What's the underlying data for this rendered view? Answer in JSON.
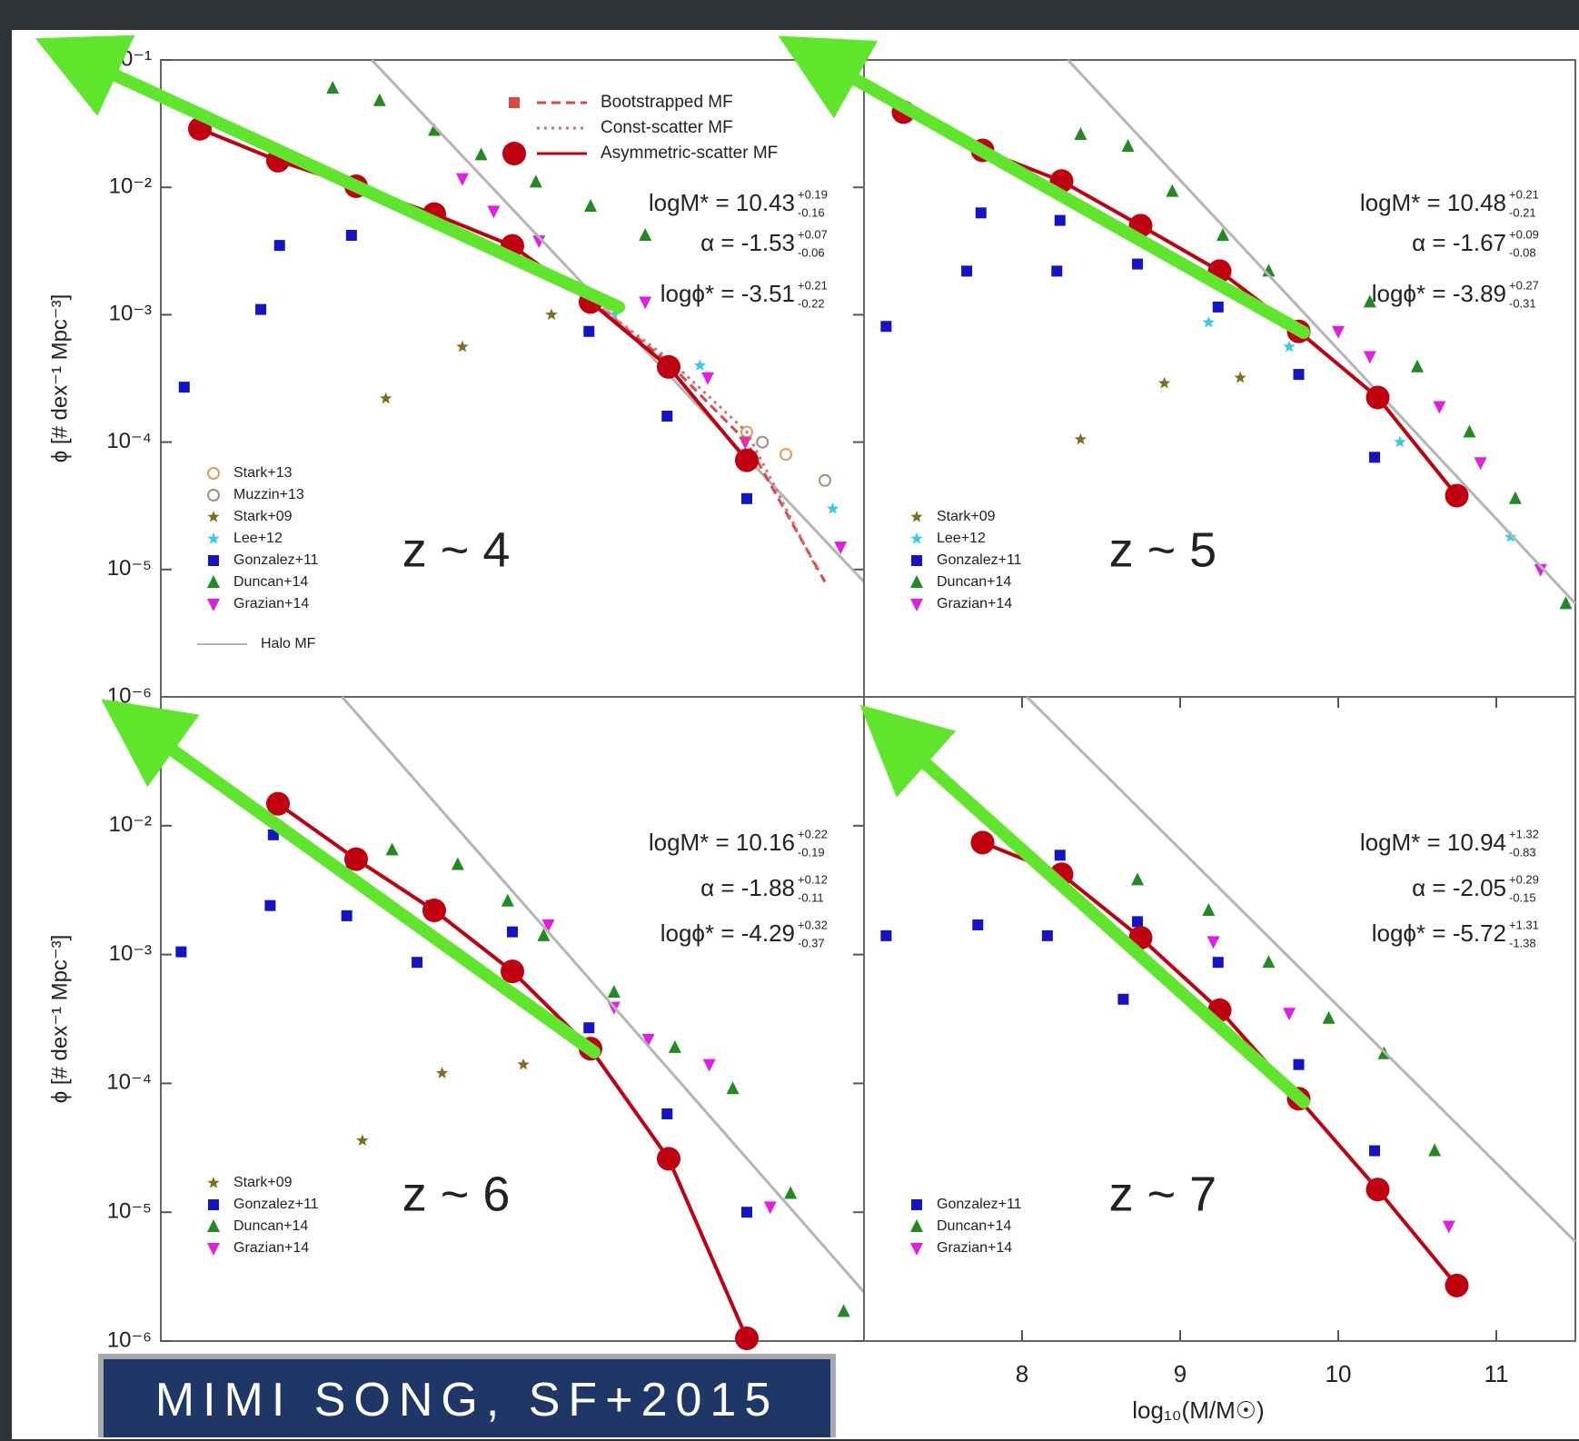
{
  "chart_data": [
    {
      "type": "scatter",
      "label": "z ~ 4",
      "ylabel": "ϕ [# dex⁻¹ Mpc⁻³]",
      "yscale": "log",
      "xlim": [
        7,
        11.5
      ],
      "ylim": [
        1e-06,
        0.1
      ],
      "yticks": [
        {
          "value": 0.1,
          "label": "10⁻¹"
        },
        {
          "value": 0.01,
          "label": "10⁻²"
        },
        {
          "value": 0.001,
          "label": "10⁻³"
        },
        {
          "value": 0.0001,
          "label": "10⁻⁴"
        },
        {
          "value": 1e-05,
          "label": "10⁻⁵"
        },
        {
          "value": 1e-06,
          "label": "10⁻⁶"
        }
      ],
      "annotations": [
        {
          "text": "logM* = 10.43",
          "sup": "+0.19",
          "sub": "-0.16"
        },
        {
          "text": "α = -1.53",
          "sup": "+0.07",
          "sub": "-0.06"
        },
        {
          "text": "logϕ* = -3.51",
          "sup": "+0.21",
          "sub": "-0.22"
        }
      ],
      "legend": "lower left",
      "mf_legend": "upper right",
      "series": [
        {
          "name": "Stark+13",
          "color": "#e39a5a",
          "marker": "open-circle",
          "x": [
            10.25,
            10.75,
            11.0
          ],
          "values": [
            0.0004,
            0.00012,
            8e-05
          ]
        },
        {
          "name": "Muzzin+13",
          "color": "#a88c7c",
          "marker": "open-circle",
          "x": [
            10.85,
            11.25
          ],
          "values": [
            0.0001,
            5e-05
          ]
        },
        {
          "name": "Stark+09",
          "color": "#7d6e22",
          "marker": "star",
          "x": [
            8.44,
            8.93,
            9.5
          ],
          "values": [
            0.00022,
            0.00056,
            0.001
          ]
        },
        {
          "name": "Lee+12",
          "color": "#33cfe0",
          "marker": "star",
          "x": [
            9.9,
            10.45,
            11.3
          ],
          "values": [
            0.001,
            0.0004,
            3e-05
          ]
        },
        {
          "name": "Gonzalez+11",
          "color": "#1414c4",
          "marker": "square",
          "x": [
            7.15,
            7.64,
            7.76,
            8.22,
            9.74,
            10.24,
            10.75
          ],
          "values": [
            0.00027,
            0.0011,
            0.0035,
            0.0042,
            0.00074,
            0.00016,
            3.6e-05
          ]
        },
        {
          "name": "Duncan+14",
          "color": "#238a23",
          "marker": "triangle",
          "x": [
            8.1,
            8.4,
            8.75,
            9.05,
            9.4,
            9.75,
            10.1
          ],
          "values": [
            0.06,
            0.048,
            0.028,
            0.018,
            0.011,
            0.0071,
            0.0042
          ]
        },
        {
          "name": "Grazian+14",
          "color": "#e020e0",
          "marker": "down-triangle",
          "x": [
            8.93,
            9.13,
            9.42,
            10.1,
            10.5,
            10.74,
            11.35
          ],
          "values": [
            0.0117,
            0.0065,
            0.0038,
            0.00126,
            0.00032,
            0.0001,
            1.5e-05
          ]
        },
        {
          "name": "Halo MF",
          "color": "#b4b4b4",
          "linestyle": "solid",
          "x": [
            8.35,
            11.5
          ],
          "values": [
            0.1,
            8e-06
          ]
        }
      ],
      "mf_series": [
        {
          "name": "Bootstrapped MF",
          "color": "#d84848",
          "marker": "square",
          "linestyle": "dashed",
          "x": [
            9.75,
            10.25,
            10.75,
            11.25
          ],
          "values": [
            0.0013,
            0.00042,
            0.0001,
            8e-06
          ]
        },
        {
          "name": "Const-scatter MF",
          "color": "#e06a6a",
          "linestyle": "dotted",
          "x": [
            9.75,
            10.25,
            10.75,
            11.2
          ],
          "values": [
            0.0013,
            0.00045,
            0.00012,
            1e-05
          ]
        },
        {
          "name": "Asymmetric-scatter MF",
          "color": "#c00010",
          "marker": "big-circle",
          "linestyle": "solid",
          "x": [
            7.25,
            7.75,
            8.25,
            8.75,
            9.25,
            9.75,
            10.25,
            10.75
          ],
          "values": [
            0.0288,
            0.0162,
            0.0102,
            0.00617,
            0.00347,
            0.00126,
            0.000389,
            7.2e-05
          ]
        }
      ]
    },
    {
      "type": "scatter",
      "label": "z ~ 5",
      "yscale": "log",
      "xlim": [
        7,
        11.5
      ],
      "ylim": [
        1e-06,
        0.1
      ],
      "annotations": [
        {
          "text": "logM* = 10.48",
          "sup": "+0.21",
          "sub": "-0.21"
        },
        {
          "text": "α = -1.67",
          "sup": "+0.09",
          "sub": "-0.08"
        },
        {
          "text": "logϕ* = -3.89",
          "sup": "+0.27",
          "sub": "-0.31"
        }
      ],
      "legend": "lower left",
      "series": [
        {
          "name": "Stark+09",
          "color": "#7d6e22",
          "marker": "star",
          "x": [
            8.37,
            8.9,
            9.38
          ],
          "values": [
            0.000105,
            0.00029,
            0.00032
          ]
        },
        {
          "name": "Lee+12",
          "color": "#33cfe0",
          "marker": "star",
          "x": [
            9.18,
            9.69,
            10.39,
            11.09
          ],
          "values": [
            0.00087,
            0.00056,
            0.0001,
            1.8e-05
          ]
        },
        {
          "name": "Gonzalez+11",
          "color": "#1414c4",
          "marker": "square",
          "x": [
            7.14,
            7.65,
            7.74,
            8.22,
            8.24,
            8.73,
            9.24,
            9.75,
            10.23
          ],
          "values": [
            0.00081,
            0.0022,
            0.0063,
            0.0022,
            0.0055,
            0.0025,
            0.00115,
            0.00034,
            7.6e-05
          ]
        },
        {
          "name": "Duncan+14",
          "color": "#238a23",
          "marker": "triangle",
          "x": [
            8.37,
            8.67,
            8.95,
            9.27,
            9.56,
            10.2,
            10.5,
            10.83,
            11.12,
            11.44
          ],
          "values": [
            0.026,
            0.021,
            0.0093,
            0.0042,
            0.0022,
            0.00126,
            0.00039,
            0.00012,
            3.6e-05,
            5.4e-06
          ]
        },
        {
          "name": "Grazian+14",
          "color": "#e020e0",
          "marker": "down-triangle",
          "x": [
            10.0,
            10.2,
            10.64,
            10.9,
            11.28
          ],
          "values": [
            0.00074,
            0.00047,
            0.00019,
            6.9e-05,
            1e-05
          ]
        },
        {
          "color": "#b4b4b4",
          "linestyle": "solid",
          "x": [
            8.29,
            11.5
          ],
          "values": [
            0.1,
            5.4e-06
          ]
        }
      ],
      "mf_series": [
        {
          "color": "#c00010",
          "marker": "big-circle",
          "linestyle": "solid",
          "x": [
            7.25,
            7.75,
            8.25,
            8.75,
            9.25,
            9.75,
            10.25,
            10.75
          ],
          "values": [
            0.039,
            0.0195,
            0.0112,
            0.005,
            0.0022,
            0.00074,
            0.000224,
            3.8e-05
          ]
        }
      ]
    },
    {
      "type": "scatter",
      "label": "z ~ 6",
      "ylabel": "ϕ [# dex⁻¹ Mpc⁻³]",
      "yscale": "log",
      "xlim": [
        7,
        11.5
      ],
      "ylim": [
        1e-06,
        0.1
      ],
      "yticks": [
        {
          "value": 0.01,
          "label": "10⁻²"
        },
        {
          "value": 0.001,
          "label": "10⁻³"
        },
        {
          "value": 0.0001,
          "label": "10⁻⁴"
        },
        {
          "value": 1e-05,
          "label": "10⁻⁵"
        },
        {
          "value": 1e-06,
          "label": "10⁻⁶"
        }
      ],
      "annotations": [
        {
          "text": "logM* = 10.16",
          "sup": "+0.22",
          "sub": "-0.19"
        },
        {
          "text": "α = -1.88",
          "sup": "+0.12",
          "sub": "-0.11"
        },
        {
          "text": "logϕ* = -4.29",
          "sup": "+0.32",
          "sub": "-0.37"
        }
      ],
      "legend": "lower left",
      "series": [
        {
          "name": "Stark+09",
          "color": "#7d6e22",
          "marker": "star",
          "x": [
            8.29,
            8.8,
            9.32
          ],
          "values": [
            3.6e-05,
            0.00012,
            0.00014
          ]
        },
        {
          "name": "Gonzalez+11",
          "color": "#1414c4",
          "marker": "square",
          "x": [
            7.13,
            7.7,
            7.72,
            8.19,
            8.22,
            8.64,
            8.73,
            9.25,
            9.74,
            10.24,
            10.75
          ],
          "values": [
            0.00105,
            0.0024,
            0.0085,
            0.002,
            0.0051,
            0.00087,
            0.0024,
            0.0015,
            0.00027,
            5.8e-05,
            1e-05
          ]
        },
        {
          "name": "Duncan+14",
          "color": "#238a23",
          "marker": "triangle",
          "x": [
            8.48,
            8.9,
            9.22,
            9.45,
            9.9,
            10.29,
            10.66,
            11.03,
            11.37
          ],
          "values": [
            0.0065,
            0.005,
            0.0026,
            0.0014,
            0.00051,
            0.00019,
            9.1e-05,
            1.4e-05,
            1.7e-06
          ]
        },
        {
          "name": "Grazian+14",
          "color": "#e020e0",
          "marker": "down-triangle",
          "x": [
            9.48,
            9.9,
            10.12,
            10.51,
            10.9
          ],
          "values": [
            0.0017,
            0.00039,
            0.00022,
            0.00014,
            1.1e-05
          ]
        },
        {
          "color": "#b4b4b4",
          "linestyle": "solid",
          "x": [
            8.16,
            11.5
          ],
          "values": [
            0.1,
            2.4e-06
          ]
        }
      ],
      "mf_series": [
        {
          "color": "#c00010",
          "marker": "big-circle",
          "linestyle": "solid",
          "x": [
            7.75,
            8.25,
            8.75,
            9.25,
            9.75,
            10.25,
            10.75
          ],
          "values": [
            0.0148,
            0.0055,
            0.0022,
            0.00074,
            0.000186,
            2.6e-05,
            1.05e-06
          ]
        }
      ]
    },
    {
      "type": "scatter",
      "label": "z ~ 7",
      "xlabel": "log₁₀(M/M☉)",
      "yscale": "log",
      "xlim": [
        7,
        11.5
      ],
      "ylim": [
        1e-06,
        0.1
      ],
      "xticks": [
        8,
        9,
        10,
        11
      ],
      "annotations": [
        {
          "text": "logM* = 10.94",
          "sup": "+1.32",
          "sub": "-0.83"
        },
        {
          "text": "α = -2.05",
          "sup": "+0.29",
          "sub": "-0.15"
        },
        {
          "text": "logϕ* = -5.72",
          "sup": "+1.31",
          "sub": "-1.38"
        }
      ],
      "legend": "lower left",
      "series": [
        {
          "name": "Gonzalez+11",
          "color": "#1414c4",
          "marker": "square",
          "x": [
            7.14,
            7.72,
            7.74,
            8.16,
            8.24,
            8.64,
            8.73,
            9.24,
            9.75,
            10.23
          ],
          "values": [
            0.0014,
            0.0017,
            0.0071,
            0.0014,
            0.0059,
            0.00045,
            0.0018,
            0.00087,
            0.00014,
            3e-05
          ]
        },
        {
          "name": "Duncan+14",
          "color": "#238a23",
          "marker": "triangle",
          "x": [
            8.73,
            9.18,
            9.56,
            9.94,
            10.29,
            10.61
          ],
          "values": [
            0.0038,
            0.0022,
            0.00087,
            0.00032,
            0.00017,
            3e-05
          ]
        },
        {
          "name": "Grazian+14",
          "color": "#e020e0",
          "marker": "down-triangle",
          "x": [
            9.21,
            9.69,
            10.7
          ],
          "values": [
            0.00126,
            0.00035,
            7.8e-06
          ]
        },
        {
          "color": "#b4b4b4",
          "linestyle": "solid",
          "x": [
            8.03,
            11.5
          ],
          "values": [
            0.1,
            5.9e-06
          ]
        }
      ],
      "mf_series": [
        {
          "color": "#c00010",
          "marker": "big-circle",
          "linestyle": "solid",
          "x": [
            7.75,
            8.25,
            8.75,
            9.25,
            9.75,
            10.25,
            10.75
          ],
          "values": [
            0.0074,
            0.0042,
            0.00135,
            0.00037,
            7.6e-05,
            1.5e-05,
            2.7e-06
          ]
        }
      ]
    }
  ],
  "caption": "MIMI SONG, SF+2015"
}
